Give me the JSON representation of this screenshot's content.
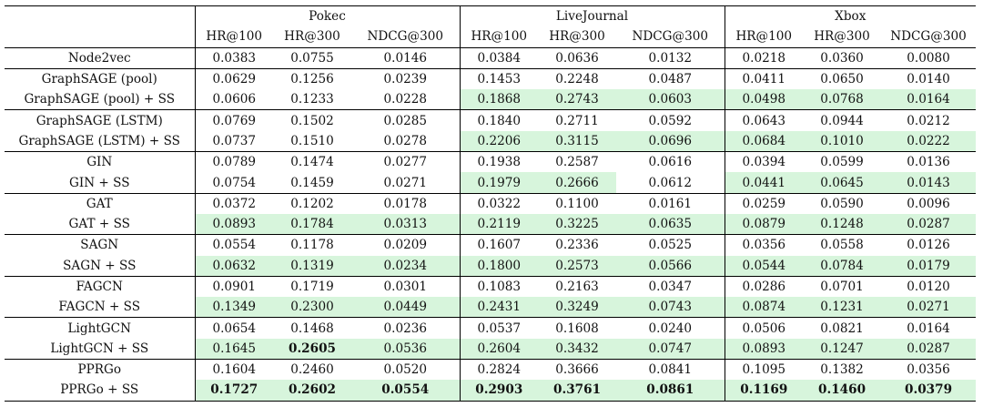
{
  "datasets": [
    "Pokec",
    "LiveJournal",
    "Xbox"
  ],
  "metrics": [
    "HR@100",
    "HR@300",
    "NDCG@300"
  ],
  "highlight_color": "#d7f5dc",
  "rows": [
    {
      "name": "Node2vec",
      "values": [
        "0.0383",
        "0.0755",
        "0.0146",
        "0.0384",
        "0.0636",
        "0.0132",
        "0.0218",
        "0.0360",
        "0.0080"
      ],
      "green": [],
      "bold": []
    },
    {
      "name": "GraphSAGE (pool)",
      "values": [
        "0.0629",
        "0.1256",
        "0.0239",
        "0.1453",
        "0.2248",
        "0.0487",
        "0.0411",
        "0.0650",
        "0.0140"
      ],
      "green": [],
      "bold": []
    },
    {
      "name": "GraphSAGE (pool) + SS",
      "values": [
        "0.0606",
        "0.1233",
        "0.0228",
        "0.1868",
        "0.2743",
        "0.0603",
        "0.0498",
        "0.0768",
        "0.0164"
      ],
      "green": [
        3,
        4,
        5,
        6,
        7,
        8
      ],
      "bold": []
    },
    {
      "name": "GraphSAGE (LSTM)",
      "values": [
        "0.0769",
        "0.1502",
        "0.0285",
        "0.1840",
        "0.2711",
        "0.0592",
        "0.0643",
        "0.0944",
        "0.0212"
      ],
      "green": [],
      "bold": []
    },
    {
      "name": "GraphSAGE (LSTM) + SS",
      "values": [
        "0.0737",
        "0.1510",
        "0.0278",
        "0.2206",
        "0.3115",
        "0.0696",
        "0.0684",
        "0.1010",
        "0.0222"
      ],
      "green": [
        3,
        4,
        5,
        6,
        7,
        8
      ],
      "bold": []
    },
    {
      "name": "GIN",
      "values": [
        "0.0789",
        "0.1474",
        "0.0277",
        "0.1938",
        "0.2587",
        "0.0616",
        "0.0394",
        "0.0599",
        "0.0136"
      ],
      "green": [],
      "bold": []
    },
    {
      "name": "GIN + SS",
      "values": [
        "0.0754",
        "0.1459",
        "0.0271",
        "0.1979",
        "0.2666",
        "0.0612",
        "0.0441",
        "0.0645",
        "0.0143"
      ],
      "green": [
        3,
        4,
        6,
        7,
        8
      ],
      "bold": []
    },
    {
      "name": "GAT",
      "values": [
        "0.0372",
        "0.1202",
        "0.0178",
        "0.0322",
        "0.1100",
        "0.0161",
        "0.0259",
        "0.0590",
        "0.0096"
      ],
      "green": [],
      "bold": []
    },
    {
      "name": "GAT + SS",
      "values": [
        "0.0893",
        "0.1784",
        "0.0313",
        "0.2119",
        "0.3225",
        "0.0635",
        "0.0879",
        "0.1248",
        "0.0287"
      ],
      "green": [
        0,
        1,
        2,
        3,
        4,
        5,
        6,
        7,
        8
      ],
      "bold": []
    },
    {
      "name": "SAGN",
      "values": [
        "0.0554",
        "0.1178",
        "0.0209",
        "0.1607",
        "0.2336",
        "0.0525",
        "0.0356",
        "0.0558",
        "0.0126"
      ],
      "green": [],
      "bold": []
    },
    {
      "name": "SAGN + SS",
      "values": [
        "0.0632",
        "0.1319",
        "0.0234",
        "0.1800",
        "0.2573",
        "0.0566",
        "0.0544",
        "0.0784",
        "0.0179"
      ],
      "green": [
        0,
        1,
        2,
        3,
        4,
        5,
        6,
        7,
        8
      ],
      "bold": []
    },
    {
      "name": "FAGCN",
      "values": [
        "0.0901",
        "0.1719",
        "0.0301",
        "0.1083",
        "0.2163",
        "0.0347",
        "0.0286",
        "0.0701",
        "0.0120"
      ],
      "green": [],
      "bold": []
    },
    {
      "name": "FAGCN + SS",
      "values": [
        "0.1349",
        "0.2300",
        "0.0449",
        "0.2431",
        "0.3249",
        "0.0743",
        "0.0874",
        "0.1231",
        "0.0271"
      ],
      "green": [
        0,
        1,
        2,
        3,
        4,
        5,
        6,
        7,
        8
      ],
      "bold": []
    },
    {
      "name": "LightGCN",
      "values": [
        "0.0654",
        "0.1468",
        "0.0236",
        "0.0537",
        "0.1608",
        "0.0240",
        "0.0506",
        "0.0821",
        "0.0164"
      ],
      "green": [],
      "bold": []
    },
    {
      "name": "LightGCN + SS",
      "values": [
        "0.1645",
        "0.2605",
        "0.0536",
        "0.2604",
        "0.3432",
        "0.0747",
        "0.0893",
        "0.1247",
        "0.0287"
      ],
      "green": [
        0,
        1,
        2,
        3,
        4,
        5,
        6,
        7,
        8
      ],
      "bold": [
        1
      ]
    },
    {
      "name": "PPRGo",
      "values": [
        "0.1604",
        "0.2460",
        "0.0520",
        "0.2824",
        "0.3666",
        "0.0841",
        "0.1095",
        "0.1382",
        "0.0356"
      ],
      "green": [],
      "bold": []
    },
    {
      "name": "PPRGo + SS",
      "values": [
        "0.1727",
        "0.2602",
        "0.0554",
        "0.2903",
        "0.3761",
        "0.0861",
        "0.1169",
        "0.1460",
        "0.0379"
      ],
      "green": [
        0,
        1,
        2,
        3,
        4,
        5,
        6,
        7,
        8
      ],
      "bold": [
        0,
        1,
        2,
        3,
        4,
        5,
        6,
        7,
        8
      ]
    }
  ]
}
